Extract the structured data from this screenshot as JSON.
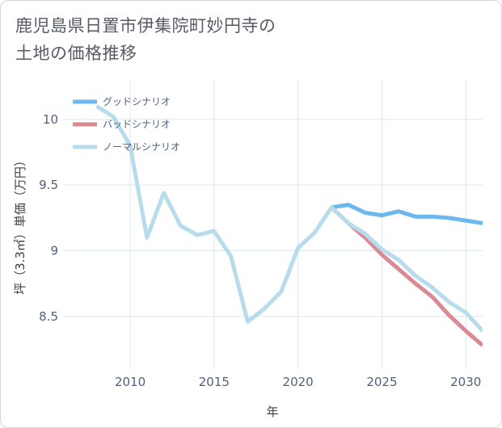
{
  "page": {
    "title_line1": "鹿児島県日置市伊集院町妙円寺の",
    "title_line2": "土地の価格推移"
  },
  "chart_data": {
    "type": "line",
    "title": "鹿児島県日置市伊集院町妙円寺の土地の価格推移",
    "xlabel": "年",
    "ylabel": "坪（3.3㎡）単価（万円）",
    "xlim": [
      2006,
      2031
    ],
    "ylim": [
      8.1,
      10.3
    ],
    "xticks": [
      2010,
      2015,
      2020,
      2025,
      2030
    ],
    "xtick_labels": [
      "2010",
      "2015",
      "2020",
      "2025",
      "2030"
    ],
    "yticks": [
      8.5,
      9,
      9.5,
      10
    ],
    "ytick_labels": [
      "8.5",
      "9",
      "9.5",
      "10"
    ],
    "grid": true,
    "legend_position": "top-left",
    "series": [
      {
        "name": "グッドシナリオ",
        "color": "#6cb8ee",
        "x": [
          2022,
          2023,
          2024,
          2025,
          2026,
          2027,
          2028,
          2029,
          2030,
          2031
        ],
        "values": [
          9.33,
          9.35,
          9.29,
          9.27,
          9.3,
          9.26,
          9.26,
          9.25,
          9.23,
          9.21
        ]
      },
      {
        "name": "バッドシナリオ",
        "color": "#d98a94",
        "x": [
          2022,
          2023,
          2024,
          2025,
          2026,
          2027,
          2028,
          2029,
          2030,
          2031
        ],
        "values": [
          9.33,
          9.21,
          9.1,
          8.97,
          8.86,
          8.75,
          8.65,
          8.51,
          8.39,
          8.28
        ]
      },
      {
        "name": "ノーマルシナリオ",
        "color": "#b7dcec",
        "x": [
          2008,
          2009,
          2010,
          2011,
          2012,
          2013,
          2014,
          2015,
          2016,
          2017,
          2018,
          2019,
          2020,
          2021,
          2022,
          2023,
          2024,
          2025,
          2026,
          2027,
          2028,
          2029,
          2030,
          2031
        ],
        "values": [
          10.1,
          10.02,
          9.8,
          9.1,
          9.44,
          9.19,
          9.12,
          9.15,
          8.96,
          8.46,
          8.56,
          8.69,
          9.02,
          9.14,
          9.33,
          9.21,
          9.13,
          9.01,
          8.93,
          8.81,
          8.72,
          8.61,
          8.53,
          8.39
        ]
      }
    ]
  }
}
